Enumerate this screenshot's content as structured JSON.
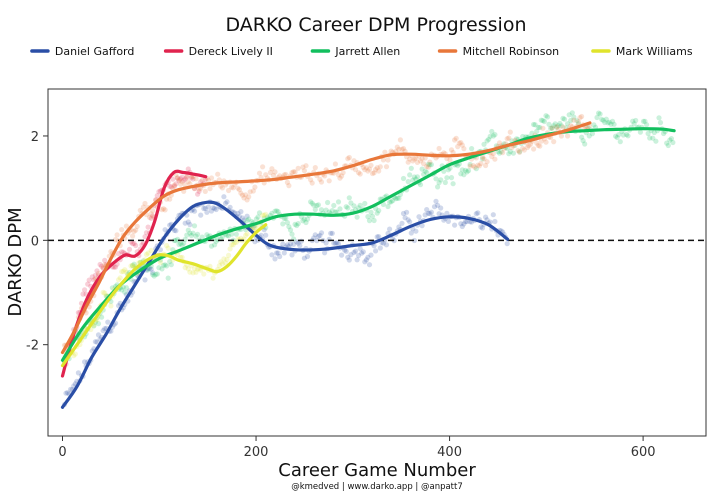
{
  "chart_data": {
    "type": "scatter",
    "title": "DARKO Career DPM Progression",
    "xlabel": "Career Game Number",
    "ylabel": "DARKO DPM",
    "caption": "@kmedved | www.darko.app | @anpatt7",
    "xlim": [
      -15,
      665
    ],
    "ylim": [
      -3.75,
      2.9
    ],
    "xticks": [
      0,
      200,
      400,
      600
    ],
    "yticks": [
      -2,
      0,
      2
    ],
    "reference_line": {
      "y": 0,
      "style": "dashed"
    },
    "legend_position": "top",
    "grid": false,
    "series": [
      {
        "name": "Daniel Gafford",
        "color": "#2a4ea6",
        "trend": [
          [
            0,
            -3.2
          ],
          [
            15,
            -2.8
          ],
          [
            30,
            -2.25
          ],
          [
            45,
            -1.8
          ],
          [
            60,
            -1.3
          ],
          [
            75,
            -0.85
          ],
          [
            90,
            -0.4
          ],
          [
            105,
            0.05
          ],
          [
            120,
            0.4
          ],
          [
            135,
            0.65
          ],
          [
            150,
            0.73
          ],
          [
            160,
            0.7
          ],
          [
            172,
            0.55
          ],
          [
            185,
            0.35
          ],
          [
            200,
            0.1
          ],
          [
            215,
            -0.1
          ],
          [
            240,
            -0.18
          ],
          [
            270,
            -0.17
          ],
          [
            300,
            -0.1
          ],
          [
            320,
            -0.05
          ],
          [
            340,
            0.1
          ],
          [
            360,
            0.27
          ],
          [
            380,
            0.4
          ],
          [
            400,
            0.45
          ],
          [
            420,
            0.42
          ],
          [
            440,
            0.3
          ],
          [
            460,
            0.02
          ]
        ],
        "noise": 0.3
      },
      {
        "name": "Dereck Lively II",
        "color": "#e0234e",
        "trend": [
          [
            0,
            -2.6
          ],
          [
            10,
            -1.9
          ],
          [
            20,
            -1.35
          ],
          [
            30,
            -0.95
          ],
          [
            42,
            -0.62
          ],
          [
            55,
            -0.4
          ],
          [
            65,
            -0.28
          ],
          [
            75,
            -0.3
          ],
          [
            85,
            -0.1
          ],
          [
            95,
            0.35
          ],
          [
            105,
            1.0
          ],
          [
            115,
            1.3
          ],
          [
            125,
            1.3
          ],
          [
            135,
            1.27
          ],
          [
            148,
            1.22
          ]
        ],
        "noise": 0.25
      },
      {
        "name": "Jarrett Allen",
        "color": "#12bf5e",
        "trend": [
          [
            0,
            -2.3
          ],
          [
            20,
            -1.7
          ],
          [
            40,
            -1.25
          ],
          [
            60,
            -0.85
          ],
          [
            80,
            -0.58
          ],
          [
            100,
            -0.35
          ],
          [
            120,
            -0.2
          ],
          [
            140,
            -0.05
          ],
          [
            160,
            0.1
          ],
          [
            180,
            0.22
          ],
          [
            200,
            0.32
          ],
          [
            220,
            0.45
          ],
          [
            240,
            0.5
          ],
          [
            260,
            0.5
          ],
          [
            280,
            0.48
          ],
          [
            300,
            0.52
          ],
          [
            320,
            0.65
          ],
          [
            340,
            0.85
          ],
          [
            360,
            1.05
          ],
          [
            380,
            1.25
          ],
          [
            400,
            1.45
          ],
          [
            420,
            1.58
          ],
          [
            440,
            1.7
          ],
          [
            460,
            1.82
          ],
          [
            480,
            1.95
          ],
          [
            500,
            2.03
          ],
          [
            520,
            2.08
          ],
          [
            540,
            2.1
          ],
          [
            560,
            2.12
          ],
          [
            580,
            2.13
          ],
          [
            600,
            2.14
          ],
          [
            620,
            2.13
          ],
          [
            632,
            2.1
          ]
        ],
        "noise": 0.3
      },
      {
        "name": "Mitchell Robinson",
        "color": "#e8773a",
        "trend": [
          [
            0,
            -2.15
          ],
          [
            12,
            -1.75
          ],
          [
            25,
            -1.25
          ],
          [
            38,
            -0.8
          ],
          [
            50,
            -0.35
          ],
          [
            62,
            0.05
          ],
          [
            75,
            0.35
          ],
          [
            90,
            0.62
          ],
          [
            105,
            0.85
          ],
          [
            120,
            0.97
          ],
          [
            140,
            1.05
          ],
          [
            160,
            1.1
          ],
          [
            180,
            1.12
          ],
          [
            200,
            1.14
          ],
          [
            220,
            1.17
          ],
          [
            240,
            1.22
          ],
          [
            260,
            1.27
          ],
          [
            280,
            1.33
          ],
          [
            300,
            1.43
          ],
          [
            320,
            1.55
          ],
          [
            340,
            1.64
          ],
          [
            360,
            1.65
          ],
          [
            380,
            1.63
          ],
          [
            400,
            1.62
          ],
          [
            420,
            1.65
          ],
          [
            440,
            1.72
          ],
          [
            460,
            1.82
          ],
          [
            480,
            1.9
          ],
          [
            500,
            2.0
          ],
          [
            520,
            2.1
          ],
          [
            545,
            2.25
          ]
        ],
        "noise": 0.28
      },
      {
        "name": "Mark Williams",
        "color": "#e0e42c",
        "trend": [
          [
            0,
            -2.4
          ],
          [
            15,
            -2.0
          ],
          [
            30,
            -1.6
          ],
          [
            45,
            -1.2
          ],
          [
            60,
            -0.85
          ],
          [
            75,
            -0.55
          ],
          [
            90,
            -0.35
          ],
          [
            100,
            -0.28
          ],
          [
            110,
            -0.3
          ],
          [
            120,
            -0.38
          ],
          [
            135,
            -0.45
          ],
          [
            150,
            -0.55
          ],
          [
            160,
            -0.6
          ],
          [
            170,
            -0.5
          ],
          [
            180,
            -0.3
          ],
          [
            190,
            -0.05
          ],
          [
            200,
            0.15
          ],
          [
            210,
            0.3
          ]
        ],
        "noise": 0.22
      }
    ]
  }
}
